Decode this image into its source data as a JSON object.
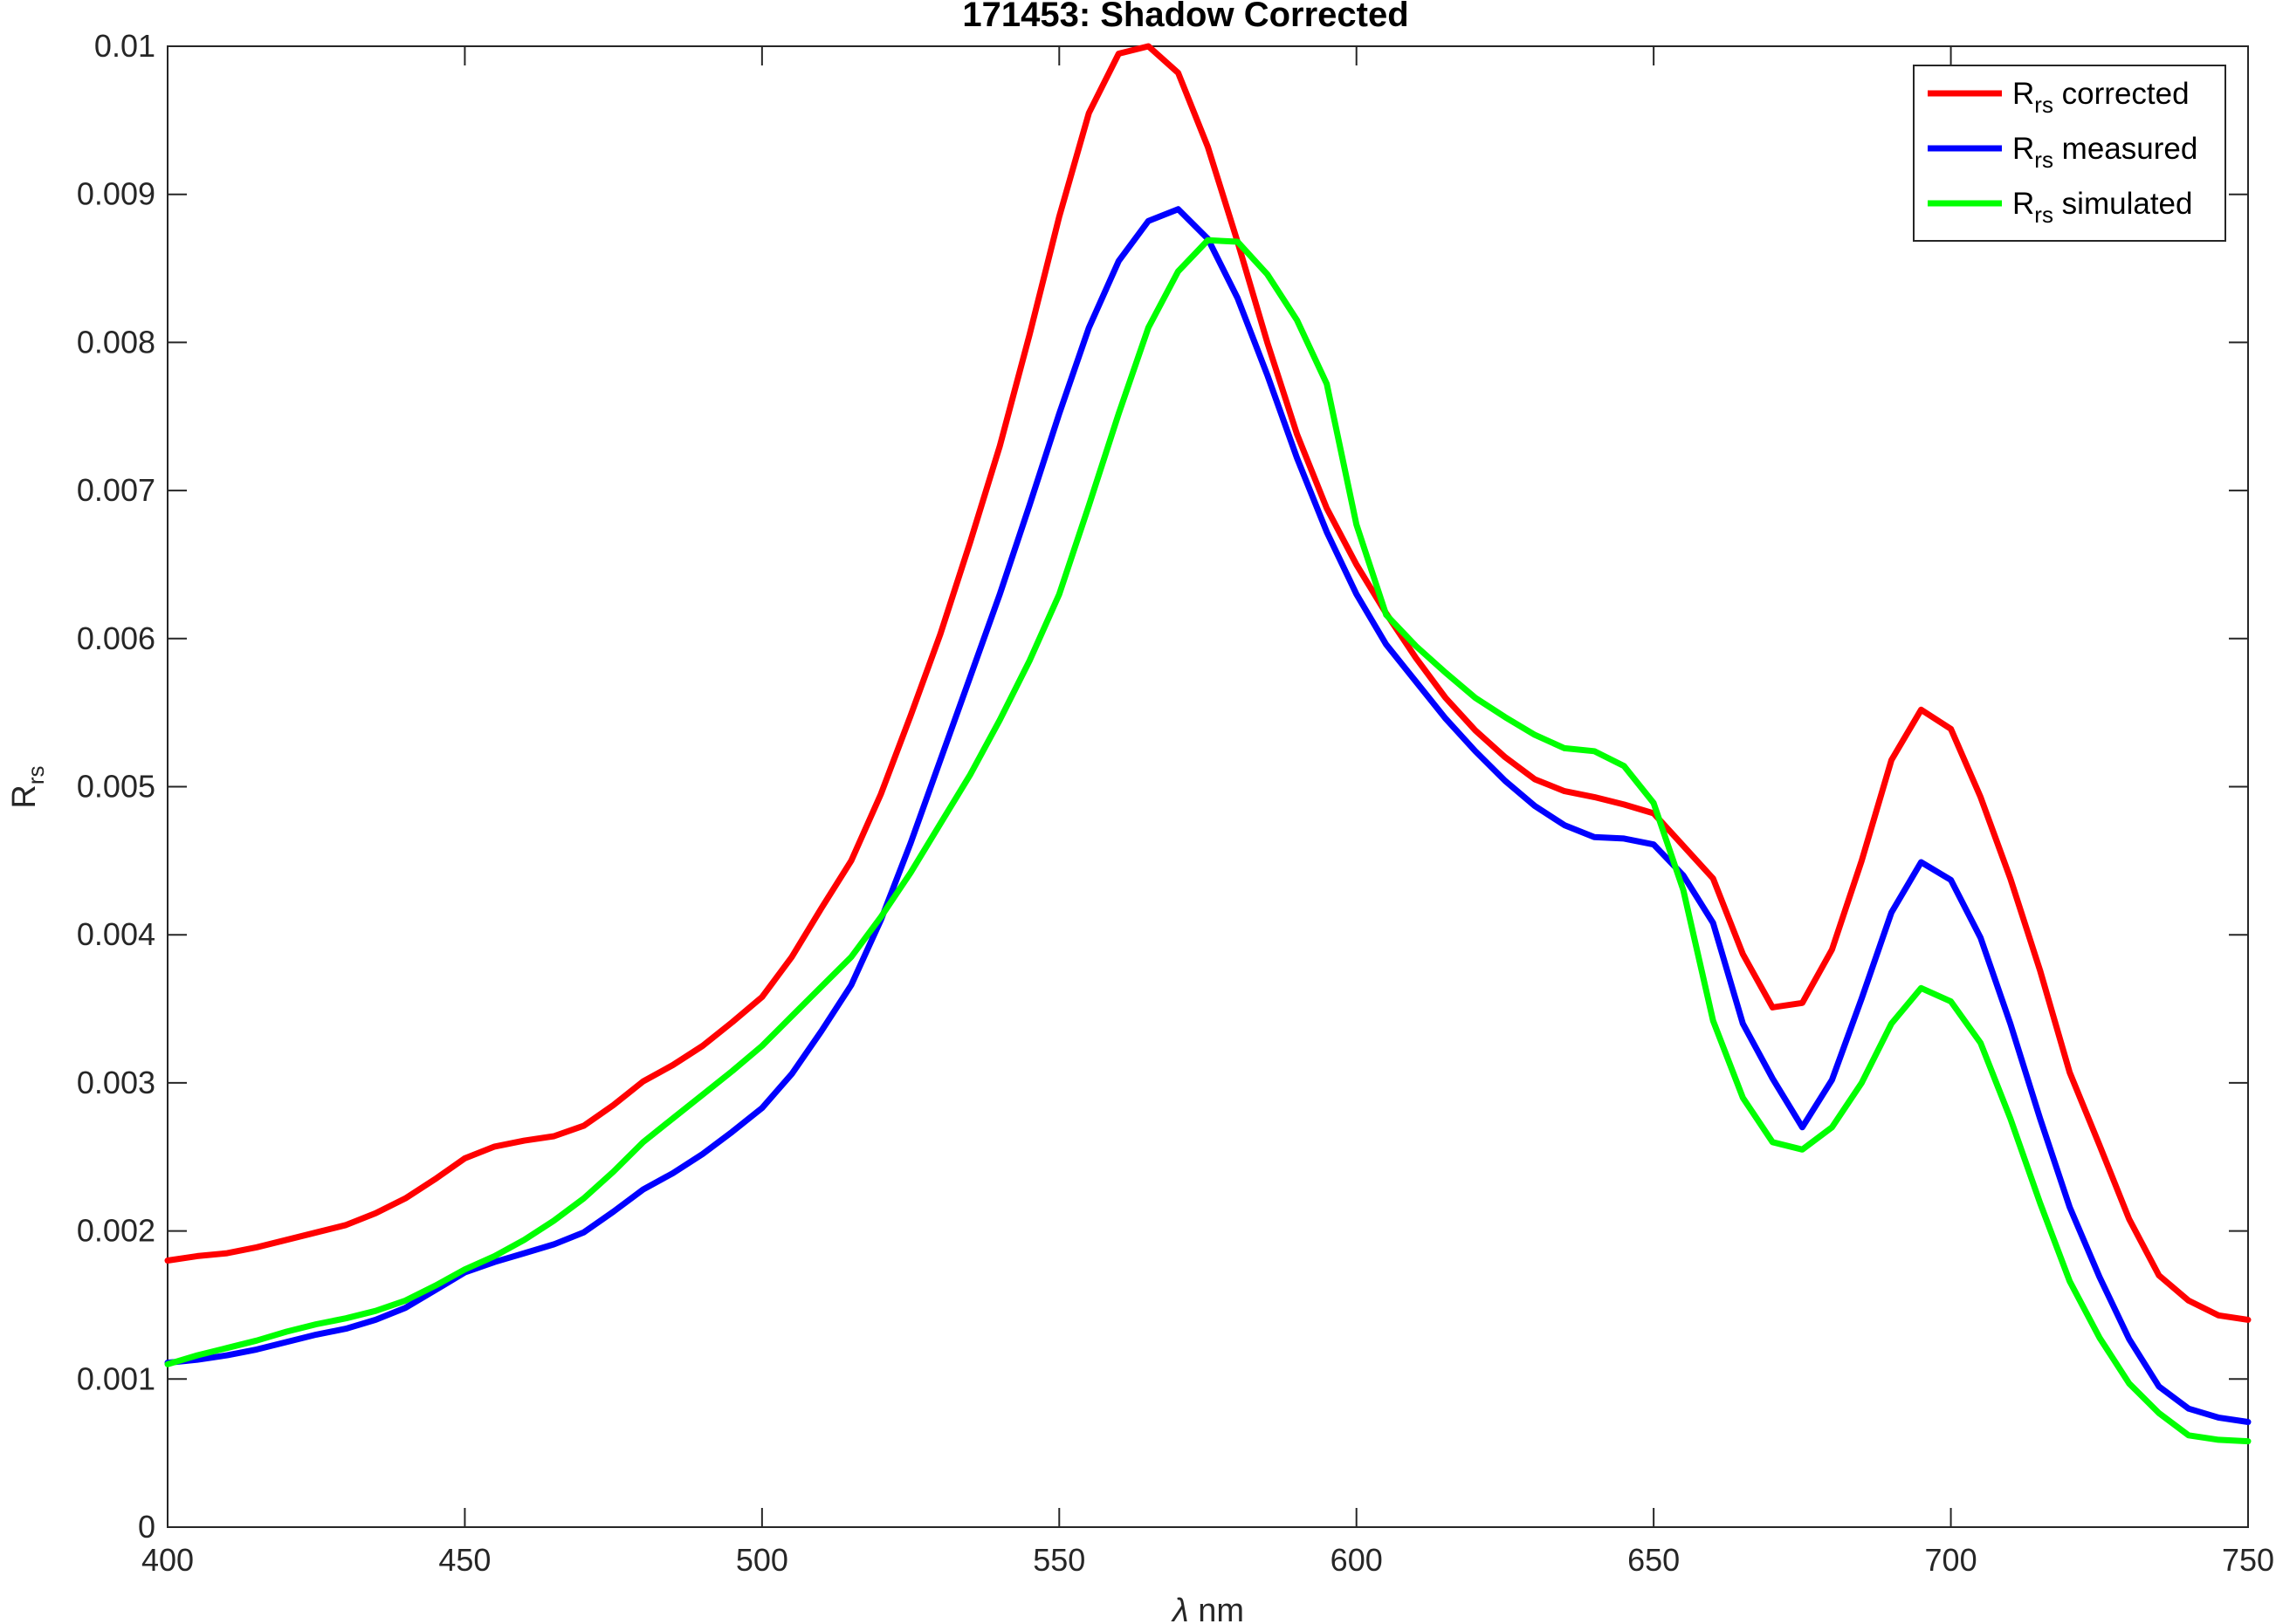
{
  "chart_data": {
    "type": "line",
    "title": "171453: Shadow Corrected",
    "xlabel": {
      "main": "λ",
      "rest": " nm"
    },
    "ylabel": {
      "main": "R",
      "sub": "rs"
    },
    "xlim": [
      400,
      750
    ],
    "ylim": [
      0,
      0.01
    ],
    "xticks": [
      400,
      450,
      500,
      550,
      600,
      650,
      700,
      750
    ],
    "yticks": [
      0,
      0.001,
      0.002,
      0.003,
      0.004,
      0.005,
      0.006,
      0.007,
      0.008,
      0.009,
      0.01
    ],
    "xtick_labels": [
      "400",
      "450",
      "500",
      "550",
      "600",
      "650",
      "700",
      "750"
    ],
    "ytick_labels": [
      "0",
      "0.001",
      "0.002",
      "0.003",
      "0.004",
      "0.005",
      "0.006",
      "0.007",
      "0.008",
      "0.009",
      "0.01"
    ],
    "grid": false,
    "legend_position": "top-right",
    "x": [
      400,
      405,
      410,
      415,
      420,
      425,
      430,
      435,
      440,
      445,
      450,
      455,
      460,
      465,
      470,
      475,
      480,
      485,
      490,
      495,
      500,
      505,
      510,
      515,
      520,
      525,
      530,
      535,
      540,
      545,
      550,
      555,
      560,
      565,
      570,
      575,
      580,
      585,
      590,
      595,
      600,
      605,
      610,
      615,
      620,
      625,
      630,
      635,
      640,
      645,
      650,
      655,
      660,
      665,
      670,
      675,
      680,
      685,
      690,
      695,
      700,
      705,
      710,
      715,
      720,
      725,
      730,
      735,
      740,
      745,
      750
    ],
    "series": [
      {
        "legend_main": "R",
        "legend_sub": "rs",
        "legend_rest": " corrected",
        "color": "#ff0000",
        "values": [
          0.0018,
          0.00183,
          0.00185,
          0.00189,
          0.00194,
          0.00199,
          0.00204,
          0.00212,
          0.00222,
          0.00235,
          0.00249,
          0.00257,
          0.00261,
          0.00264,
          0.00271,
          0.00285,
          0.00301,
          0.00312,
          0.00325,
          0.00341,
          0.00358,
          0.00385,
          0.00418,
          0.0045,
          0.00495,
          0.00548,
          0.00603,
          0.00665,
          0.0073,
          0.00805,
          0.00885,
          0.00955,
          0.00995,
          0.01,
          0.00982,
          0.00932,
          0.00868,
          0.008,
          0.00738,
          0.00688,
          0.0065,
          0.00617,
          0.00587,
          0.0056,
          0.00538,
          0.0052,
          0.00505,
          0.00497,
          0.00493,
          0.00488,
          0.00482,
          0.0046,
          0.00438,
          0.00387,
          0.00351,
          0.00354,
          0.0039,
          0.0045,
          0.00518,
          0.00552,
          0.00539,
          0.00493,
          0.00438,
          0.00376,
          0.00307,
          0.00258,
          0.00208,
          0.0017,
          0.00153,
          0.00143,
          0.0014
        ]
      },
      {
        "legend_main": "R",
        "legend_sub": "rs",
        "legend_rest": " measured",
        "color": "#0000ff",
        "values": [
          0.00111,
          0.00113,
          0.00116,
          0.0012,
          0.00125,
          0.0013,
          0.00134,
          0.0014,
          0.00148,
          0.0016,
          0.00172,
          0.00179,
          0.00185,
          0.00191,
          0.00199,
          0.00213,
          0.00228,
          0.00239,
          0.00252,
          0.00267,
          0.00283,
          0.00306,
          0.00335,
          0.00366,
          0.0041,
          0.00462,
          0.00518,
          0.00574,
          0.0063,
          0.0069,
          0.00752,
          0.0081,
          0.00855,
          0.00882,
          0.0089,
          0.0087,
          0.0083,
          0.00778,
          0.00722,
          0.00672,
          0.0063,
          0.00596,
          0.00571,
          0.00546,
          0.00524,
          0.00504,
          0.00487,
          0.00474,
          0.00466,
          0.00465,
          0.00461,
          0.0044,
          0.00408,
          0.0034,
          0.00303,
          0.0027,
          0.00302,
          0.00357,
          0.00415,
          0.00449,
          0.00437,
          0.00398,
          0.0034,
          0.00276,
          0.00216,
          0.00169,
          0.00127,
          0.00095,
          0.0008,
          0.00074,
          0.00071
        ]
      },
      {
        "legend_main": "R",
        "legend_sub": "rs",
        "legend_rest": " simulated",
        "color": "#00ff00",
        "values": [
          0.0011,
          0.00116,
          0.00121,
          0.00126,
          0.00132,
          0.00137,
          0.00141,
          0.00146,
          0.00153,
          0.00163,
          0.00174,
          0.00183,
          0.00194,
          0.00207,
          0.00222,
          0.0024,
          0.0026,
          0.00276,
          0.00292,
          0.00308,
          0.00325,
          0.00345,
          0.00365,
          0.00385,
          0.00412,
          0.00442,
          0.00475,
          0.00508,
          0.00545,
          0.00585,
          0.0063,
          0.0069,
          0.00752,
          0.0081,
          0.00848,
          0.00869,
          0.00868,
          0.00846,
          0.00815,
          0.00772,
          0.00677,
          0.00616,
          0.00595,
          0.00577,
          0.0056,
          0.00547,
          0.00535,
          0.00526,
          0.00524,
          0.00514,
          0.00489,
          0.0043,
          0.00342,
          0.0029,
          0.0026,
          0.00255,
          0.0027,
          0.003,
          0.0034,
          0.00364,
          0.00355,
          0.00327,
          0.00276,
          0.00219,
          0.00166,
          0.00128,
          0.00097,
          0.00077,
          0.00062,
          0.00059,
          0.00058
        ]
      }
    ]
  }
}
